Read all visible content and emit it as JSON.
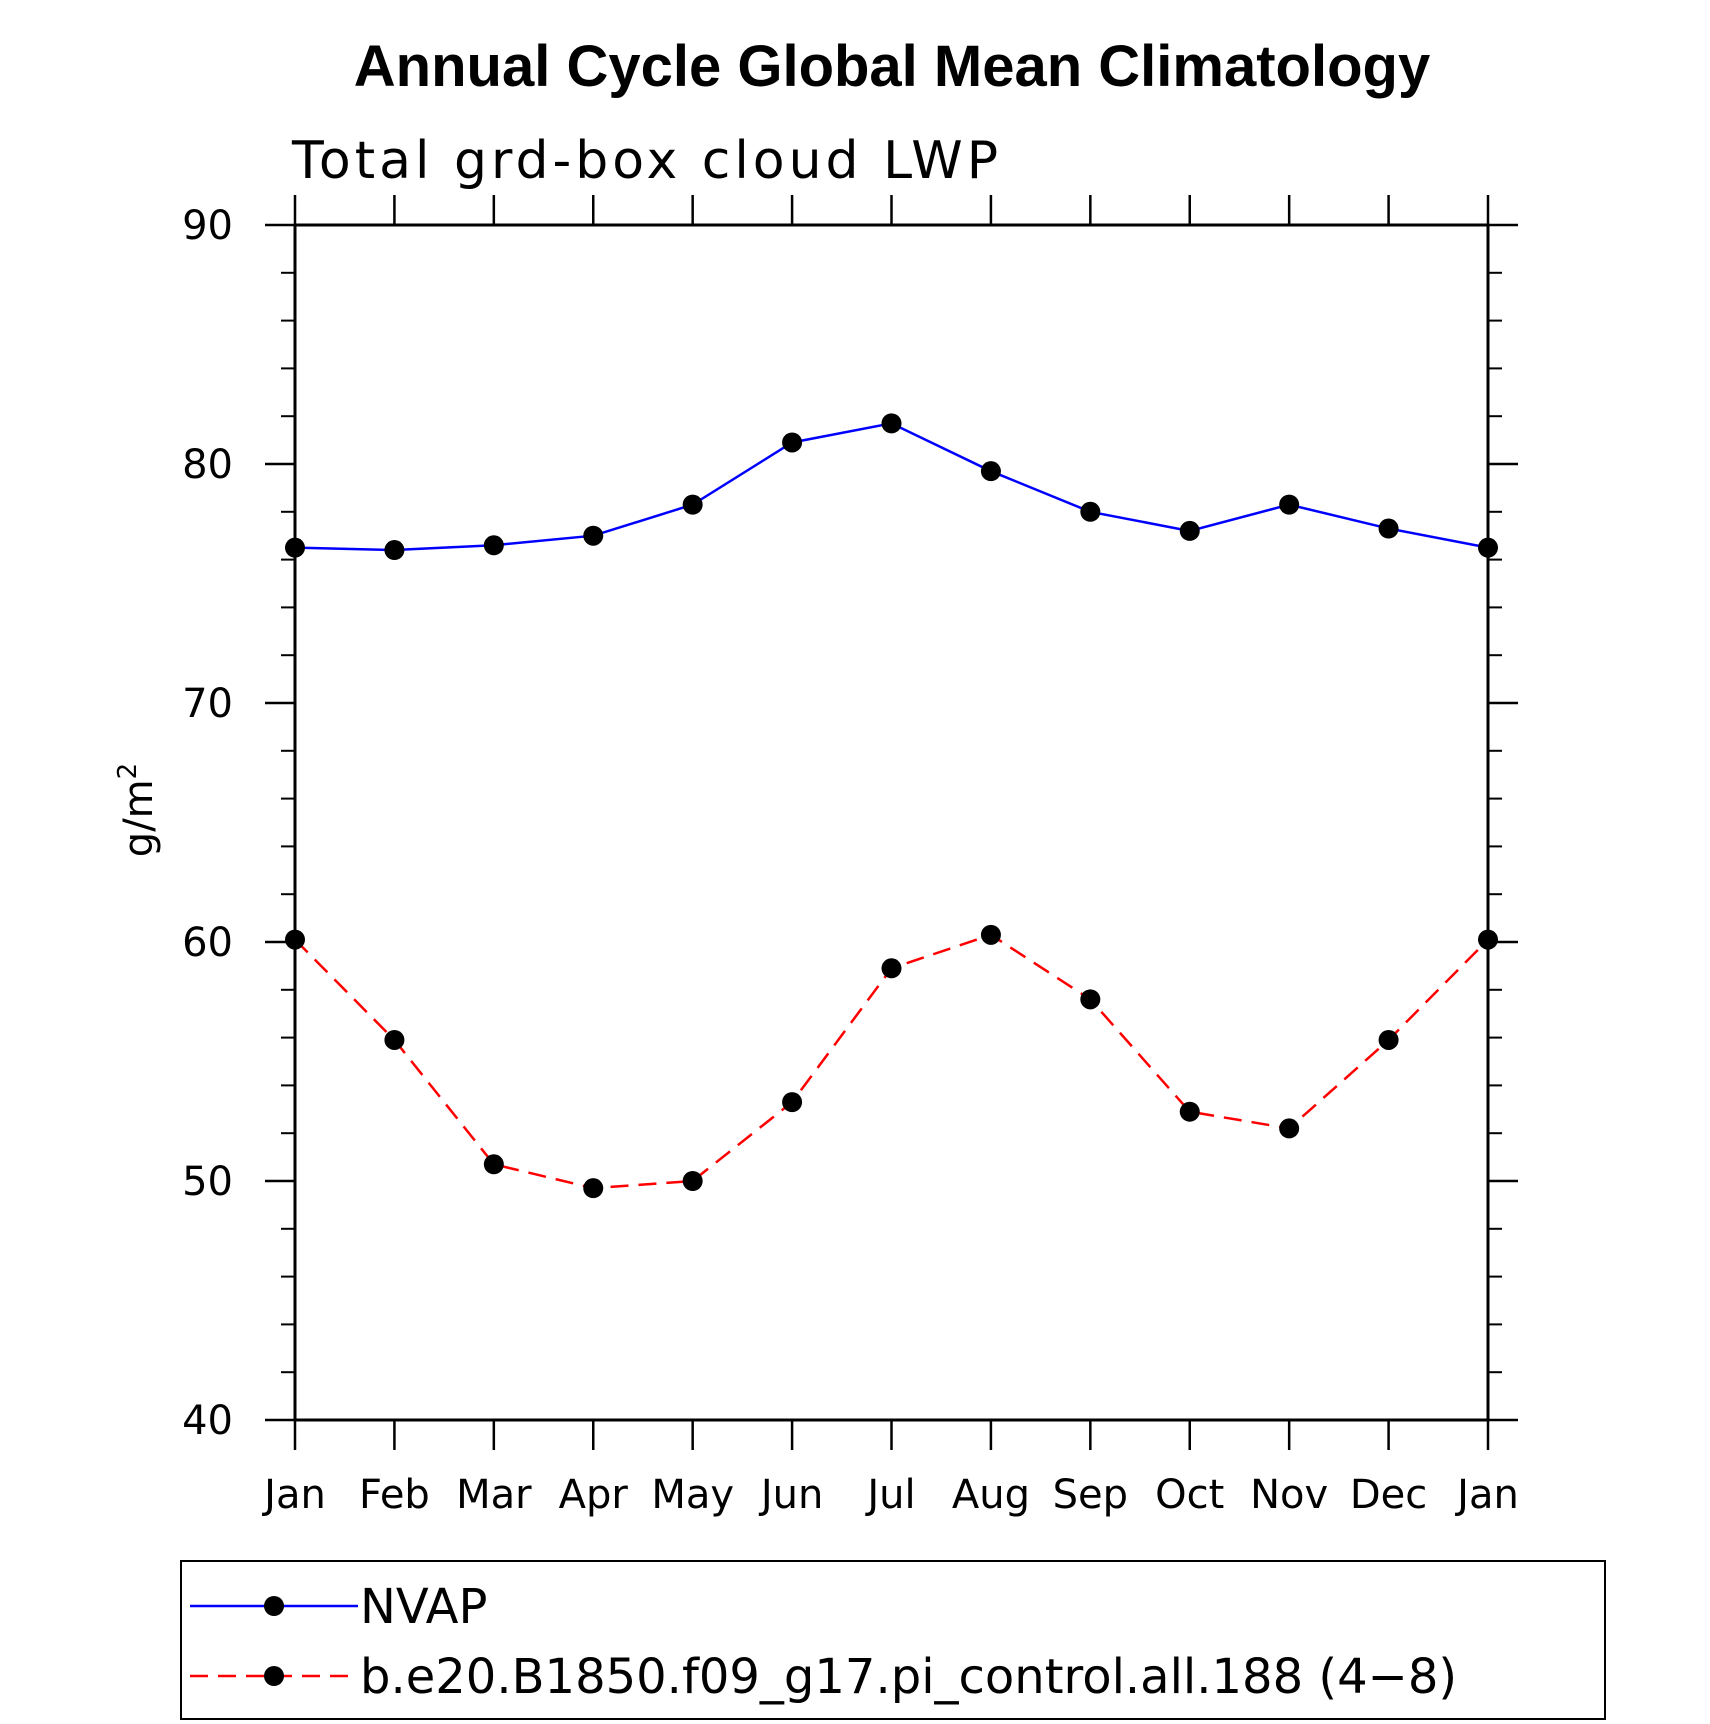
{
  "chart_data": {
    "type": "line",
    "title": "Annual Cycle Global Mean Climatology",
    "subtitle": "Total grd-box cloud LWP",
    "ylabel_base": "g/m",
    "ylabel_sup": "2",
    "xlabel": "",
    "ylim": [
      40,
      90
    ],
    "yticks": [
      40,
      50,
      60,
      70,
      80,
      90
    ],
    "yticks_minor_step": 2,
    "categories": [
      "Jan",
      "Feb",
      "Mar",
      "Apr",
      "May",
      "Jun",
      "Jul",
      "Aug",
      "Sep",
      "Oct",
      "Nov",
      "Dec",
      "Jan"
    ],
    "series": [
      {
        "name": "NVAP",
        "color": "#0000ff",
        "dash": "solid",
        "values": [
          76.5,
          76.4,
          76.6,
          77.0,
          78.3,
          80.9,
          81.7,
          79.7,
          78.0,
          77.2,
          78.3,
          77.3,
          76.5
        ]
      },
      {
        "name": "b.e20.B1850.f09_g17.pi_control.all.188 (4−8)",
        "color": "#ff0000",
        "dash": "dashed",
        "values": [
          60.1,
          55.9,
          50.7,
          49.7,
          50.0,
          53.3,
          58.9,
          60.3,
          57.6,
          52.9,
          52.2,
          55.9,
          60.1
        ]
      }
    ],
    "legend_position": "bottom"
  }
}
